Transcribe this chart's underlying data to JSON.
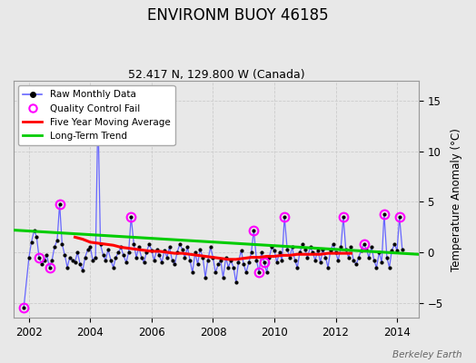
{
  "title": "ENVIRONM BUOY 46185",
  "subtitle": "52.417 N, 129.800 W (Canada)",
  "ylabel": "Temperature Anomaly (°C)",
  "watermark": "Berkeley Earth",
  "xlim": [
    2001.5,
    2014.7
  ],
  "ylim": [
    -6.5,
    17
  ],
  "yticks": [
    -5,
    0,
    5,
    10,
    15
  ],
  "xticks": [
    2002,
    2004,
    2006,
    2008,
    2010,
    2012,
    2014
  ],
  "line_color": "#6666ff",
  "marker_color": "#000000",
  "qc_color": "#ff00ff",
  "ma_color": "#ff0000",
  "trend_color": "#00cc00",
  "bg_color": "#e8e8e8",
  "raw_data": [
    [
      2001.83,
      -5.5
    ],
    [
      2002.0,
      -0.5
    ],
    [
      2002.08,
      1.0
    ],
    [
      2002.17,
      2.2
    ],
    [
      2002.25,
      1.5
    ],
    [
      2002.33,
      -0.5
    ],
    [
      2002.42,
      -1.2
    ],
    [
      2002.5,
      -0.8
    ],
    [
      2002.58,
      -0.3
    ],
    [
      2002.67,
      -1.5
    ],
    [
      2002.75,
      -0.8
    ],
    [
      2002.83,
      0.5
    ],
    [
      2002.92,
      1.2
    ],
    [
      2003.0,
      4.8
    ],
    [
      2003.08,
      0.8
    ],
    [
      2003.17,
      -0.3
    ],
    [
      2003.25,
      -1.5
    ],
    [
      2003.33,
      -0.5
    ],
    [
      2003.42,
      -0.8
    ],
    [
      2003.5,
      -1.0
    ],
    [
      2003.58,
      0.0
    ],
    [
      2003.67,
      -1.2
    ],
    [
      2003.75,
      -1.8
    ],
    [
      2003.83,
      -0.5
    ],
    [
      2003.92,
      0.3
    ],
    [
      2004.0,
      0.5
    ],
    [
      2004.08,
      -0.8
    ],
    [
      2004.17,
      -0.5
    ],
    [
      2004.25,
      14.0
    ],
    [
      2004.33,
      0.8
    ],
    [
      2004.42,
      -0.3
    ],
    [
      2004.5,
      -0.8
    ],
    [
      2004.58,
      0.3
    ],
    [
      2004.67,
      -0.8
    ],
    [
      2004.75,
      -1.5
    ],
    [
      2004.83,
      -0.5
    ],
    [
      2004.92,
      0.0
    ],
    [
      2005.0,
      0.5
    ],
    [
      2005.08,
      -0.3
    ],
    [
      2005.17,
      -1.0
    ],
    [
      2005.25,
      0.0
    ],
    [
      2005.33,
      3.5
    ],
    [
      2005.42,
      0.8
    ],
    [
      2005.5,
      -0.5
    ],
    [
      2005.58,
      0.5
    ],
    [
      2005.67,
      -0.5
    ],
    [
      2005.75,
      -1.0
    ],
    [
      2005.83,
      0.0
    ],
    [
      2005.92,
      0.8
    ],
    [
      2006.0,
      0.2
    ],
    [
      2006.08,
      -0.8
    ],
    [
      2006.17,
      0.3
    ],
    [
      2006.25,
      -0.3
    ],
    [
      2006.33,
      -1.0
    ],
    [
      2006.42,
      0.2
    ],
    [
      2006.5,
      -0.5
    ],
    [
      2006.58,
      0.5
    ],
    [
      2006.67,
      -0.8
    ],
    [
      2006.75,
      -1.2
    ],
    [
      2006.83,
      0.0
    ],
    [
      2006.92,
      0.8
    ],
    [
      2007.0,
      0.3
    ],
    [
      2007.08,
      -0.5
    ],
    [
      2007.17,
      0.5
    ],
    [
      2007.25,
      -0.8
    ],
    [
      2007.33,
      -2.0
    ],
    [
      2007.42,
      0.0
    ],
    [
      2007.5,
      -1.2
    ],
    [
      2007.58,
      0.3
    ],
    [
      2007.67,
      -0.5
    ],
    [
      2007.75,
      -2.5
    ],
    [
      2007.83,
      -0.8
    ],
    [
      2007.92,
      0.5
    ],
    [
      2008.0,
      -0.5
    ],
    [
      2008.08,
      -2.0
    ],
    [
      2008.17,
      -1.2
    ],
    [
      2008.25,
      -0.8
    ],
    [
      2008.33,
      -2.5
    ],
    [
      2008.42,
      -0.5
    ],
    [
      2008.5,
      -1.5
    ],
    [
      2008.58,
      -0.8
    ],
    [
      2008.67,
      -1.5
    ],
    [
      2008.75,
      -3.0
    ],
    [
      2008.83,
      -1.0
    ],
    [
      2008.92,
      0.2
    ],
    [
      2009.0,
      -1.2
    ],
    [
      2009.08,
      -2.0
    ],
    [
      2009.17,
      -1.0
    ],
    [
      2009.25,
      0.0
    ],
    [
      2009.33,
      2.2
    ],
    [
      2009.42,
      -0.8
    ],
    [
      2009.5,
      -2.0
    ],
    [
      2009.58,
      0.0
    ],
    [
      2009.67,
      -1.0
    ],
    [
      2009.75,
      -2.0
    ],
    [
      2009.83,
      -0.5
    ],
    [
      2009.92,
      0.5
    ],
    [
      2010.0,
      0.2
    ],
    [
      2010.08,
      -1.0
    ],
    [
      2010.17,
      0.0
    ],
    [
      2010.25,
      -0.8
    ],
    [
      2010.33,
      3.5
    ],
    [
      2010.42,
      0.3
    ],
    [
      2010.5,
      -0.5
    ],
    [
      2010.58,
      0.5
    ],
    [
      2010.67,
      -0.8
    ],
    [
      2010.75,
      -1.5
    ],
    [
      2010.83,
      0.0
    ],
    [
      2010.92,
      0.8
    ],
    [
      2011.0,
      0.3
    ],
    [
      2011.08,
      -0.5
    ],
    [
      2011.17,
      0.5
    ],
    [
      2011.25,
      0.0
    ],
    [
      2011.33,
      -0.8
    ],
    [
      2011.42,
      0.2
    ],
    [
      2011.5,
      -1.0
    ],
    [
      2011.58,
      0.3
    ],
    [
      2011.67,
      -0.5
    ],
    [
      2011.75,
      -1.5
    ],
    [
      2011.83,
      0.2
    ],
    [
      2011.92,
      0.8
    ],
    [
      2012.0,
      0.0
    ],
    [
      2012.08,
      -0.8
    ],
    [
      2012.17,
      0.5
    ],
    [
      2012.25,
      3.5
    ],
    [
      2012.33,
      0.3
    ],
    [
      2012.42,
      -0.5
    ],
    [
      2012.5,
      0.5
    ],
    [
      2012.58,
      -0.8
    ],
    [
      2012.67,
      -1.2
    ],
    [
      2012.75,
      -0.5
    ],
    [
      2012.83,
      0.2
    ],
    [
      2012.92,
      0.8
    ],
    [
      2013.0,
      0.3
    ],
    [
      2013.08,
      -0.5
    ],
    [
      2013.17,
      0.5
    ],
    [
      2013.25,
      -0.8
    ],
    [
      2013.33,
      -1.5
    ],
    [
      2013.42,
      0.0
    ],
    [
      2013.5,
      -1.0
    ],
    [
      2013.58,
      3.8
    ],
    [
      2013.67,
      -0.5
    ],
    [
      2013.75,
      -1.5
    ],
    [
      2013.83,
      0.2
    ],
    [
      2013.92,
      0.8
    ],
    [
      2014.0,
      0.2
    ],
    [
      2014.08,
      3.5
    ],
    [
      2014.17,
      0.3
    ]
  ],
  "qc_fail": [
    [
      2001.83,
      -5.5
    ],
    [
      2002.33,
      -0.5
    ],
    [
      2002.67,
      -1.5
    ],
    [
      2003.0,
      4.8
    ],
    [
      2004.25,
      14.0
    ],
    [
      2005.33,
      3.5
    ],
    [
      2009.33,
      2.2
    ],
    [
      2009.5,
      -2.0
    ],
    [
      2009.67,
      -1.0
    ],
    [
      2010.33,
      3.5
    ],
    [
      2012.25,
      3.5
    ],
    [
      2012.92,
      0.8
    ],
    [
      2013.58,
      3.8
    ],
    [
      2014.08,
      3.5
    ]
  ],
  "ma_data": [
    [
      2003.5,
      1.5
    ],
    [
      2003.75,
      1.3
    ],
    [
      2004.0,
      1.0
    ],
    [
      2004.25,
      0.9
    ],
    [
      2004.5,
      0.8
    ],
    [
      2004.75,
      0.7
    ],
    [
      2005.0,
      0.5
    ],
    [
      2005.25,
      0.4
    ],
    [
      2005.5,
      0.3
    ],
    [
      2005.75,
      0.2
    ],
    [
      2006.0,
      0.1
    ],
    [
      2006.25,
      0.1
    ],
    [
      2006.5,
      0.0
    ],
    [
      2006.75,
      -0.1
    ],
    [
      2007.0,
      -0.1
    ],
    [
      2007.25,
      -0.2
    ],
    [
      2007.5,
      -0.3
    ],
    [
      2007.75,
      -0.4
    ],
    [
      2008.0,
      -0.5
    ],
    [
      2008.25,
      -0.6
    ],
    [
      2008.5,
      -0.7
    ],
    [
      2008.75,
      -0.7
    ],
    [
      2009.0,
      -0.6
    ],
    [
      2009.25,
      -0.5
    ],
    [
      2009.5,
      -0.5
    ],
    [
      2009.75,
      -0.4
    ],
    [
      2010.0,
      -0.4
    ],
    [
      2010.25,
      -0.3
    ],
    [
      2010.5,
      -0.3
    ],
    [
      2010.75,
      -0.2
    ],
    [
      2011.0,
      -0.2
    ],
    [
      2011.25,
      -0.2
    ],
    [
      2011.5,
      -0.2
    ],
    [
      2011.75,
      -0.1
    ],
    [
      2012.0,
      -0.1
    ],
    [
      2012.25,
      -0.1
    ],
    [
      2012.5,
      -0.1
    ]
  ],
  "trend_x": [
    2001.5,
    2014.7
  ],
  "trend_y": [
    2.2,
    -0.2
  ]
}
